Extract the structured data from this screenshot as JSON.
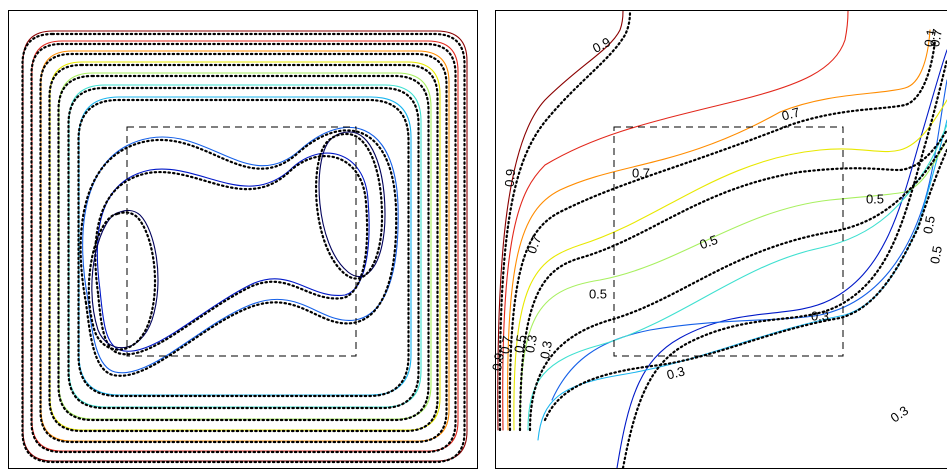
{
  "chart_data": [
    {
      "type": "contour",
      "panel": "left",
      "legend": false,
      "grid": false,
      "series": [
        {
          "kind": "solid",
          "levels": 10,
          "colors": [
            "#8b0000",
            "#e2281c",
            "#ff8c00",
            "#e8e800",
            "#a8f060",
            "#3fe0d0",
            "#1ab5ef",
            "#1560e8",
            "#0018c8",
            "#00005a"
          ]
        },
        {
          "kind": "dotted-reference",
          "color": "#000000"
        }
      ],
      "inset_box": "dashed"
    },
    {
      "type": "contour",
      "panel": "right",
      "legend": false,
      "grid": false,
      "series": [
        {
          "kind": "solid",
          "levels": [
            0.1,
            0.2,
            0.3,
            0.4,
            0.5,
            0.6,
            0.7,
            0.8,
            0.9
          ],
          "colors": [
            "#0018c8",
            "#1560e8",
            "#1ab5ef",
            "#3fe0d0",
            "#a8f060",
            "#e8e800",
            "#ff8c00",
            "#e2281c",
            "#8b0000"
          ]
        },
        {
          "kind": "dotted-reference",
          "color": "#000000"
        }
      ],
      "inset_box": "dashed",
      "annotations": [
        "0.9",
        "0.7",
        "0.5",
        "0.9",
        "0.7",
        "0.7",
        "0.5",
        "0.5",
        "0.5",
        "0.3",
        "0.3",
        "0.3",
        "0.1",
        "0.7",
        "0.5",
        "0.3",
        "0.9",
        "0.7",
        "0.5",
        "0.3"
      ]
    }
  ]
}
